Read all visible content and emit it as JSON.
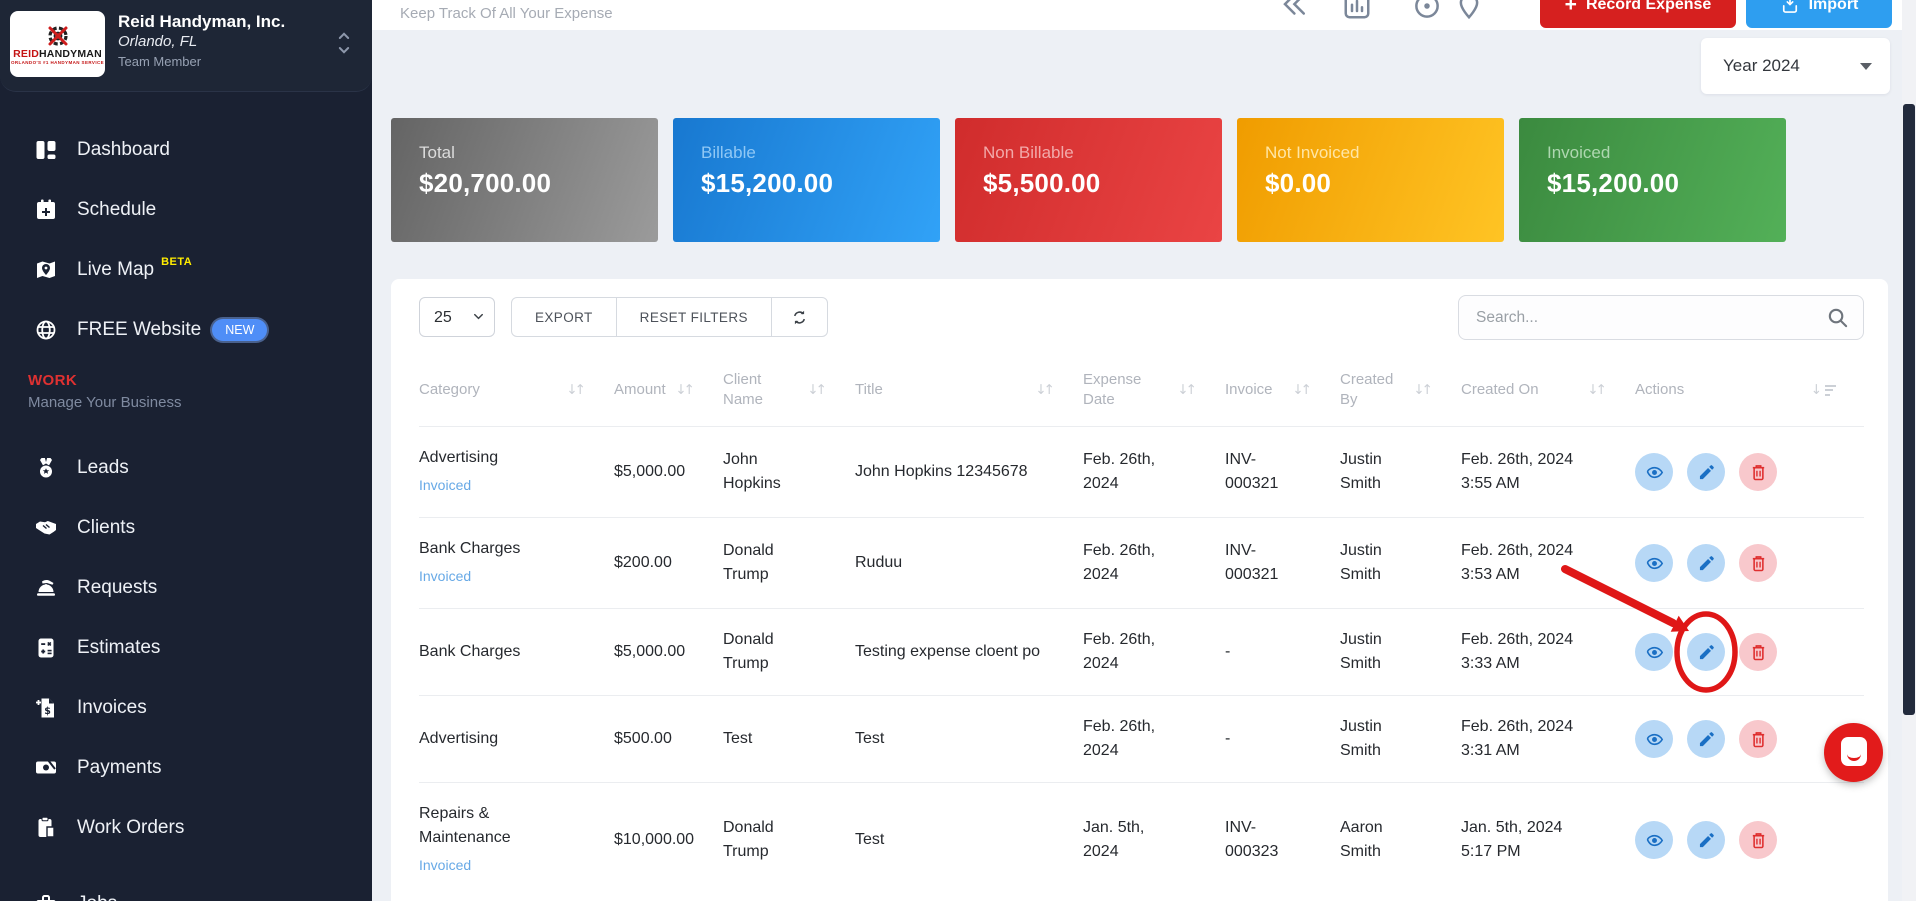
{
  "sidebar": {
    "company": {
      "name": "Reid Handyman, Inc.",
      "location": "Orlando, FL",
      "role": "Team Member",
      "logo_word_red": "REID",
      "logo_word_black": "HANDYMAN",
      "logo_tagline": "ORLANDO'S #1 HANDYMAN SERVICE"
    },
    "items": [
      {
        "label": "Dashboard",
        "icon": "dashboard-icon"
      },
      {
        "label": "Schedule",
        "icon": "calendar-icon"
      },
      {
        "label": "Live Map",
        "icon": "map-icon",
        "badge": "BETA",
        "badge_style": "beta"
      },
      {
        "label": "FREE Website",
        "icon": "globe-icon",
        "badge": "NEW",
        "badge_style": "new"
      }
    ],
    "section": {
      "title": "WORK",
      "subtitle": "Manage Your Business"
    },
    "work_items": [
      {
        "label": "Leads",
        "icon": "medal-icon"
      },
      {
        "label": "Clients",
        "icon": "handshake-icon"
      },
      {
        "label": "Requests",
        "icon": "service-bell-icon"
      },
      {
        "label": "Estimates",
        "icon": "calculator-icon"
      },
      {
        "label": "Invoices",
        "icon": "invoice-icon"
      },
      {
        "label": "Payments",
        "icon": "cash-icon"
      },
      {
        "label": "Work Orders",
        "icon": "clipboard-icon"
      },
      {
        "label": "Jobs",
        "icon": "briefcase-icon",
        "clipped": true
      }
    ]
  },
  "header": {
    "subtitle": "Keep Track Of All Your Expense",
    "toolbar_icons": [
      "collapse-icon",
      "chart-icon",
      "help-icon",
      "pin-icon"
    ],
    "record_expense_label": "Record Expense",
    "import_label": "Import",
    "year_filter": "Year 2024"
  },
  "summary_cards": [
    {
      "label": "Total",
      "value": "$20,700.00",
      "color_from": "#646464",
      "color_to": "#9b9b9b",
      "label_color": "#dcdcdc"
    },
    {
      "label": "Billable",
      "value": "$15,200.00",
      "color_from": "#1878d0",
      "color_to": "#31a2f7",
      "label_color": "#90c8f5"
    },
    {
      "label": "Non Billable",
      "value": "$5,500.00",
      "color_from": "#d02c2c",
      "color_to": "#ea4444",
      "label_color": "#f2a9a9"
    },
    {
      "label": "Not Invoiced",
      "value": "$0.00",
      "color_from": "#f09c00",
      "color_to": "#ffc424",
      "label_color": "#ffe6a6"
    },
    {
      "label": "Invoiced",
      "value": "$15,200.00",
      "color_from": "#3b8a3f",
      "color_to": "#53b058",
      "label_color": "#aed7b0"
    }
  ],
  "table": {
    "page_size": "25",
    "export_label": "EXPORT",
    "reset_label": "RESET FILTERS",
    "search_placeholder": "Search...",
    "headers": [
      "Category",
      "Amount",
      "Client Name",
      "Title",
      "Expense Date",
      "Invoice",
      "Created By",
      "Created On",
      "Actions"
    ],
    "rows": [
      {
        "category": "Advertising",
        "status": "Invoiced",
        "amount": "$5,000.00",
        "client": "John Hopkins",
        "title": "John Hopkins 12345678",
        "expense_date": "Feb. 26th, 2024",
        "invoice": "INV-000321",
        "created_by": "Justin Smith",
        "created_on": "Feb. 26th, 2024 3:55 AM",
        "annotated": false
      },
      {
        "category": "Bank Charges",
        "status": "Invoiced",
        "amount": "$200.00",
        "client": "Donald Trump",
        "title": "Ruduu",
        "expense_date": "Feb. 26th, 2024",
        "invoice": "INV-000321",
        "created_by": "Justin Smith",
        "created_on": "Feb. 26th, 2024 3:53 AM",
        "annotated": false
      },
      {
        "category": "Bank Charges",
        "status": "",
        "amount": "$5,000.00",
        "client": "Donald Trump",
        "title": "Testing expense cloent po",
        "expense_date": "Feb. 26th, 2024",
        "invoice": "-",
        "created_by": "Justin Smith",
        "created_on": "Feb. 26th, 2024 3:33 AM",
        "annotated": true
      },
      {
        "category": "Advertising",
        "status": "",
        "amount": "$500.00",
        "client": "Test",
        "title": "Test",
        "expense_date": "Feb. 26th, 2024",
        "invoice": "-",
        "created_by": "Justin Smith",
        "created_on": "Feb. 26th, 2024 3:31 AM",
        "annotated": false
      },
      {
        "category": "Repairs & Maintenance",
        "status": "Invoiced",
        "amount": "$10,000.00",
        "client": "Donald Trump",
        "title": "Test",
        "expense_date": "Jan. 5th, 2024",
        "invoice": "INV-000323",
        "created_by": "Aaron Smith",
        "created_on": "Jan. 5th, 2024 5:17 PM",
        "annotated": false
      }
    ]
  },
  "colors": {
    "record_button": "#d6201f",
    "import_button": "#2e9ef0",
    "invoiced_link": "#67a9e6",
    "annotation": "#df1717",
    "chat_bubble": "#e21b1b"
  }
}
